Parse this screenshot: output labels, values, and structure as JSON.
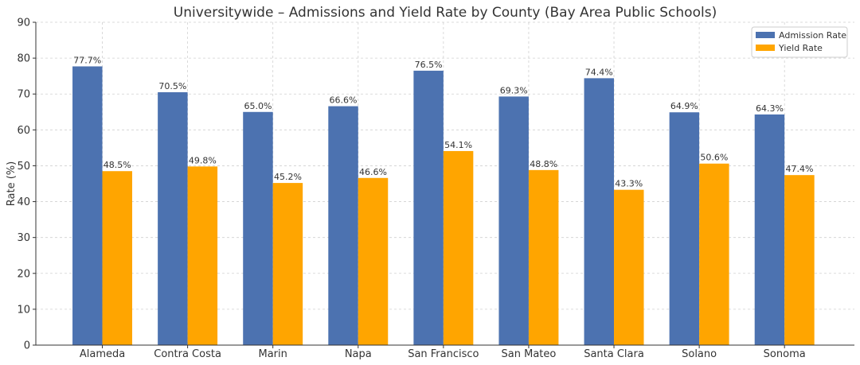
{
  "chart_data": {
    "type": "bar",
    "title": "Universitywide – Admissions and Yield Rate by County (Bay Area Public Schools)",
    "xlabel": "",
    "ylabel": "Rate (%)",
    "ylim": [
      0,
      90
    ],
    "yticks": [
      0,
      10,
      20,
      30,
      40,
      50,
      60,
      70,
      80,
      90
    ],
    "grid": true,
    "legend_position": "top-right",
    "categories": [
      "Alameda",
      "Contra Costa",
      "Marin",
      "Napa",
      "San Francisco",
      "San Mateo",
      "Santa Clara",
      "Solano",
      "Sonoma"
    ],
    "series": [
      {
        "name": "Admission Rate",
        "color": "#4c72b0",
        "values": [
          77.7,
          70.5,
          65.0,
          66.6,
          76.5,
          69.3,
          74.4,
          64.9,
          64.3
        ],
        "labels": [
          "77.7%",
          "70.5%",
          "65.0%",
          "66.6%",
          "76.5%",
          "69.3%",
          "74.4%",
          "64.9%",
          "64.3%"
        ]
      },
      {
        "name": "Yield Rate",
        "color": "#ffa500",
        "values": [
          48.5,
          49.8,
          45.2,
          46.6,
          54.1,
          48.8,
          43.3,
          50.6,
          47.4
        ],
        "labels": [
          "48.5%",
          "49.8%",
          "45.2%",
          "46.6%",
          "54.1%",
          "48.8%",
          "43.3%",
          "50.6%",
          "47.4%"
        ]
      }
    ]
  }
}
